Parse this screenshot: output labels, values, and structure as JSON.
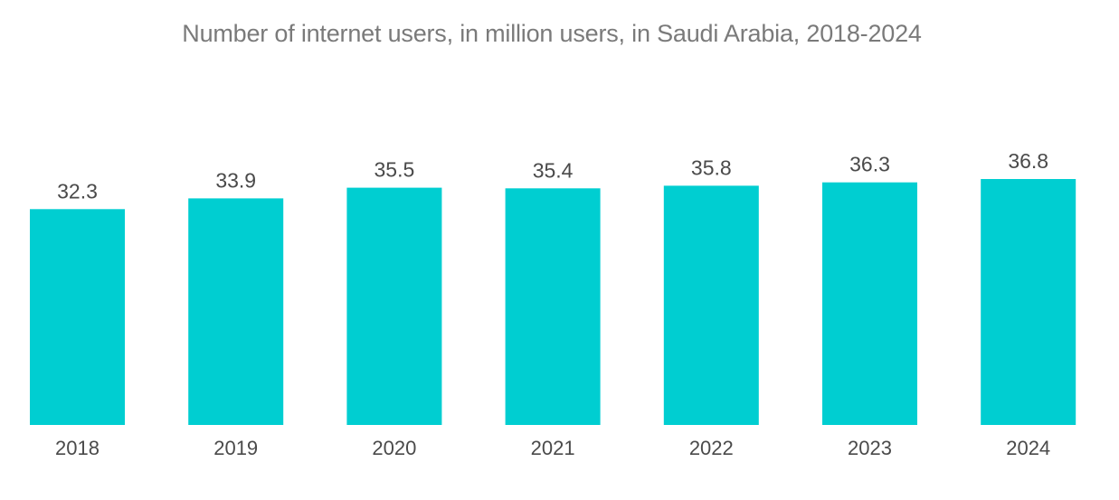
{
  "chart_data": {
    "type": "bar",
    "title": "Number of internet users, in million users, in Saudi Arabia, 2018-2024",
    "xlabel": "",
    "ylabel": "",
    "categories": [
      "2018",
      "2019",
      "2020",
      "2021",
      "2022",
      "2023",
      "2024"
    ],
    "values": [
      32.3,
      33.9,
      35.5,
      35.4,
      35.8,
      36.3,
      36.8
    ],
    "value_labels": [
      "32.3",
      "33.9",
      "35.5",
      "35.4",
      "35.8",
      "36.3",
      "36.8"
    ],
    "ylim": [
      0,
      36.8
    ],
    "grid": false,
    "legend": "none",
    "bar_color": "#00CED1"
  }
}
